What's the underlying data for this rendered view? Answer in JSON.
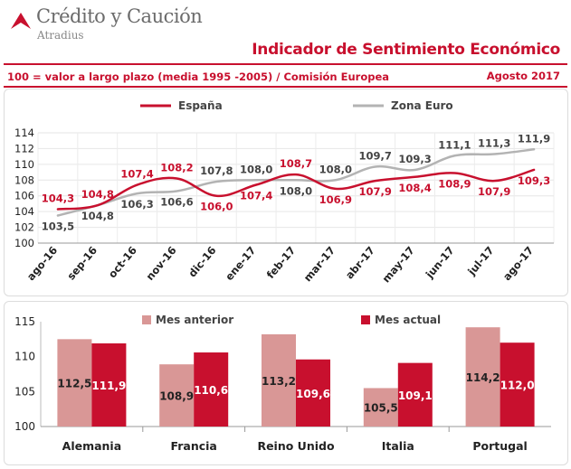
{
  "brand": {
    "name": "Crédito y Caución",
    "sub": "Atradius"
  },
  "header": {
    "title": "Indicador de Sentimiento Económico",
    "subtitle": "100 = valor a largo plazo (media 1995 -2005) / Comisión Europea",
    "period": "Agosto 2017"
  },
  "colors": {
    "accent": "#c8102e",
    "espana": "#c8102e",
    "zona_euro": "#b3b3b3",
    "mes_anterior": "#d99796",
    "mes_actual": "#c8102e"
  },
  "chart_data": [
    {
      "type": "line",
      "title": "",
      "categories": [
        "ago-16",
        "sep-16",
        "oct-16",
        "nov-16",
        "dic-16",
        "ene-17",
        "feb-17",
        "mar-17",
        "abr-17",
        "may-17",
        "jun-17",
        "jul-17",
        "ago-17"
      ],
      "series": [
        {
          "name": "España",
          "values": [
            104.3,
            104.8,
            107.4,
            108.2,
            106.0,
            107.4,
            108.7,
            106.9,
            107.9,
            108.4,
            108.9,
            107.9,
            109.3
          ],
          "labels": [
            "104,3",
            "104,8",
            "107,4",
            "108,2",
            "106,0",
            "107,4",
            "108,7",
            "106,9",
            "107,9",
            "108,4",
            "108,9",
            "107,9",
            "109,3"
          ]
        },
        {
          "name": "Zona Euro",
          "values": [
            103.5,
            104.8,
            106.3,
            106.6,
            107.8,
            108.0,
            108.0,
            108.0,
            109.7,
            109.3,
            111.1,
            111.3,
            111.9
          ],
          "labels": [
            "103,5",
            "104,8",
            "106,3",
            "106,6",
            "107,8",
            "108,0",
            "108,0",
            "108,0",
            "109,7",
            "109,3",
            "111,1",
            "111,3",
            "111,9"
          ]
        }
      ],
      "ylim": [
        100,
        114
      ],
      "yticks": [
        "100",
        "102",
        "104",
        "106",
        "108",
        "110",
        "112",
        "114"
      ],
      "grid": true,
      "legend": "top"
    },
    {
      "type": "bar",
      "title": "",
      "categories": [
        "Alemania",
        "Francia",
        "Reino Unido",
        "Italia",
        "Portugal"
      ],
      "series": [
        {
          "name": "Mes anterior",
          "values": [
            112.5,
            108.9,
            113.2,
            105.5,
            114.2
          ],
          "labels": [
            "112,5",
            "108,9",
            "113,2",
            "105,5",
            "114,2"
          ]
        },
        {
          "name": "Mes actual",
          "values": [
            111.9,
            110.6,
            109.6,
            109.1,
            112.0
          ],
          "labels": [
            "111,9",
            "110,6",
            "109,6",
            "109,1",
            "112,0"
          ]
        }
      ],
      "ylim": [
        100,
        115
      ],
      "yticks": [
        "100",
        "105",
        "110",
        "115"
      ],
      "grid": false,
      "legend": "top"
    }
  ]
}
